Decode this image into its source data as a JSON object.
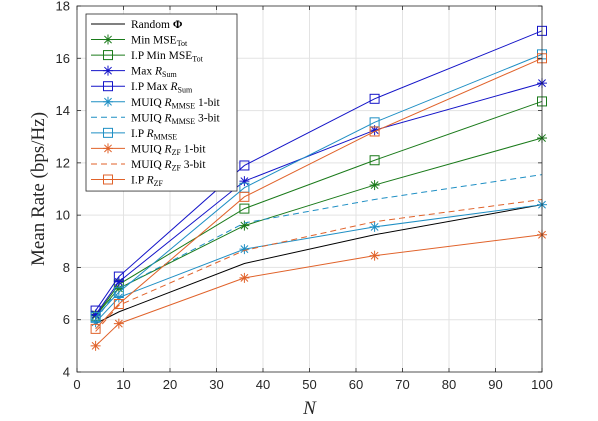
{
  "chart_data": {
    "type": "line",
    "xlabel": "N",
    "ylabel": "Mean Rate (bps/Hz)",
    "x": [
      4,
      9,
      36,
      64,
      100
    ],
    "xlim": [
      0,
      100
    ],
    "ylim": [
      4,
      18
    ],
    "xticks": [
      "0",
      "10",
      "20",
      "30",
      "40",
      "50",
      "60",
      "70",
      "80",
      "90",
      "100"
    ],
    "yticks": [
      "4",
      "6",
      "8",
      "10",
      "12",
      "14",
      "16",
      "18"
    ],
    "grid": true,
    "legend_position": "top-left",
    "series": [
      {
        "name": "Random Φ",
        "label_main": "Random ",
        "label_bold": "Φ",
        "values": [
          5.85,
          6.3,
          8.15,
          9.25,
          10.4
        ],
        "color": "#000000",
        "dash": "solid",
        "marker": "none"
      },
      {
        "name": "Min MSE_Tot",
        "label_main": "Min MSE",
        "label_sub": "Tot",
        "values": [
          6.15,
          7.2,
          9.6,
          11.15,
          12.95
        ],
        "color": "#1a7a1a",
        "dash": "solid",
        "marker": "star"
      },
      {
        "name": "I.P Min MSE_Tot",
        "label_main": "I.P Min MSE",
        "label_sub": "Tot",
        "values": [
          6.15,
          7.35,
          10.25,
          12.1,
          14.35
        ],
        "color": "#1a7a1a",
        "dash": "solid",
        "marker": "square"
      },
      {
        "name": "Max R_Sum",
        "label_main": "Max ",
        "label_italic": "R",
        "label_sub": "Sum",
        "values": [
          6.2,
          7.45,
          11.3,
          13.25,
          15.05
        ],
        "color": "#1414c8",
        "dash": "solid",
        "marker": "star"
      },
      {
        "name": "I.P Max R_Sum",
        "label_main": "I.P Max ",
        "label_italic": "R",
        "label_sub": "Sum",
        "values": [
          6.35,
          7.65,
          11.9,
          14.45,
          17.05
        ],
        "color": "#1414c8",
        "dash": "solid",
        "marker": "square"
      },
      {
        "name": "MUIQ R_MMSE 1-bit",
        "label_main": "MUIQ ",
        "label_italic": "R",
        "label_sub": "MMSE",
        "label_tail": " 1-bit",
        "values": [
          5.9,
          6.85,
          8.7,
          9.55,
          10.4
        ],
        "color": "#1f8fc4",
        "dash": "solid",
        "marker": "star"
      },
      {
        "name": "MUIQ R_MMSE 3-bit",
        "label_main": "MUIQ ",
        "label_italic": "R",
        "label_sub": "MMSE",
        "label_tail": " 3-bit",
        "values": [
          6.0,
          7.2,
          9.7,
          10.6,
          11.55
        ],
        "color": "#1f8fc4",
        "dash": "dashed",
        "marker": "none"
      },
      {
        "name": "I.P R_MMSE",
        "label_main": "I.P ",
        "label_italic": "R",
        "label_sub": "MMSE",
        "values": [
          6.1,
          7.05,
          11.05,
          13.55,
          16.15
        ],
        "color": "#1f8fc4",
        "dash": "solid",
        "marker": "square"
      },
      {
        "name": "MUIQ R_ZF 1-bit",
        "label_main": "MUIQ ",
        "label_italic": "R",
        "label_sub": "ZF",
        "label_tail": " 1-bit",
        "values": [
          5.0,
          5.85,
          7.6,
          8.45,
          9.25
        ],
        "color": "#e0622a",
        "dash": "solid",
        "marker": "star"
      },
      {
        "name": "MUIQ R_ZF 3-bit",
        "label_main": "MUIQ ",
        "label_italic": "R",
        "label_sub": "ZF",
        "label_tail": " 3-bit",
        "values": [
          5.55,
          6.55,
          8.65,
          9.75,
          10.6
        ],
        "color": "#e0622a",
        "dash": "dashed",
        "marker": "none"
      },
      {
        "name": "I.P R_ZF",
        "label_main": "I.P ",
        "label_italic": "R",
        "label_sub": "ZF",
        "values": [
          5.65,
          6.6,
          10.7,
          13.2,
          16.0
        ],
        "color": "#e0622a",
        "dash": "solid",
        "marker": "square"
      }
    ]
  }
}
